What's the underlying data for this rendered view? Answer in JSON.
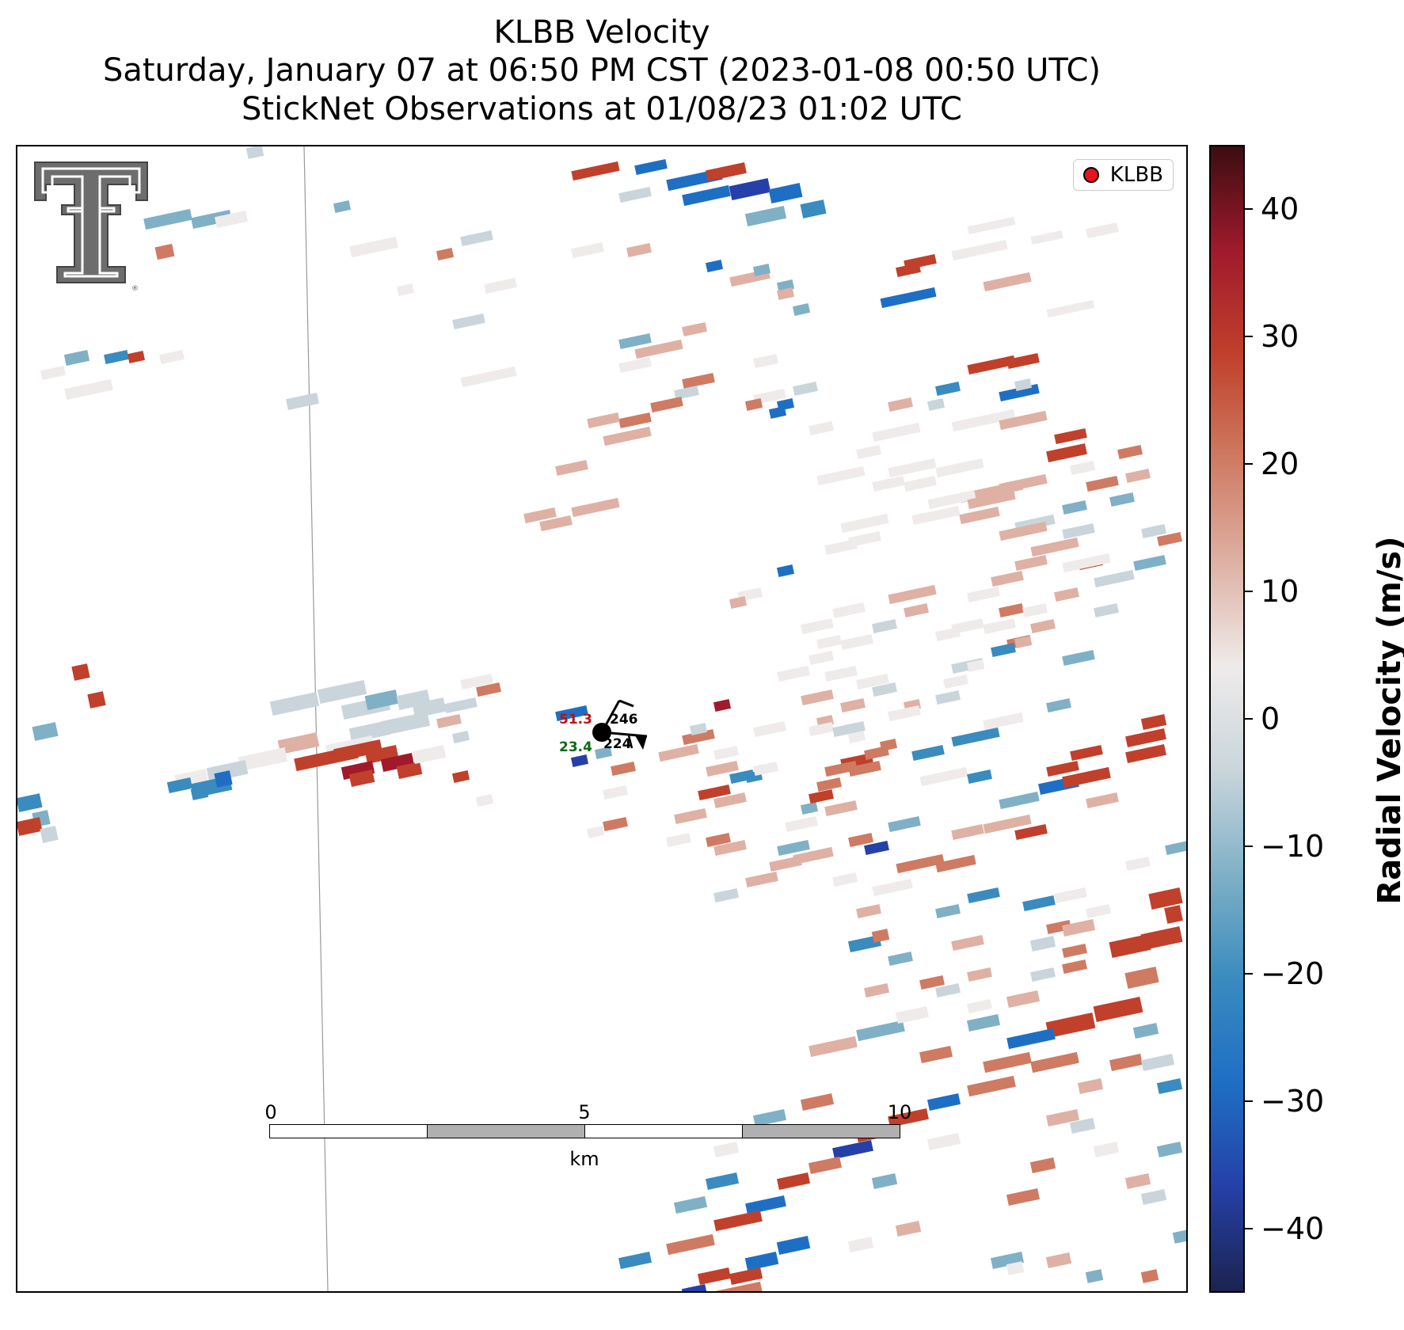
{
  "title": {
    "line1": "KLBB Velocity",
    "line2": "Saturday, January 07 at 06:50 PM CST (2023-01-08 00:50 UTC)",
    "line3": "StickNet Observations at 01/08/23 01:02 UTC"
  },
  "legend": {
    "label": "KLBB",
    "marker_color": "#e8131c"
  },
  "scalebar": {
    "ticks": [
      "0",
      "5",
      "10"
    ],
    "unit": "km"
  },
  "colorbar": {
    "label": "Radial Velocity (m/s)",
    "range": [
      -45,
      45
    ],
    "ticks": [
      {
        "value": 40,
        "label": "40"
      },
      {
        "value": 30,
        "label": "30"
      },
      {
        "value": 20,
        "label": "20"
      },
      {
        "value": 10,
        "label": "10"
      },
      {
        "value": 0,
        "label": "0"
      },
      {
        "value": -10,
        "label": "−10"
      },
      {
        "value": -20,
        "label": "−20"
      },
      {
        "value": -30,
        "label": "−30"
      },
      {
        "value": -40,
        "label": "−40"
      }
    ],
    "colors": [
      "#1c2350",
      "#2540a8",
      "#1e6fc4",
      "#3a8bbf",
      "#7fb0c6",
      "#c9d5db",
      "#efebea",
      "#deb1a4",
      "#cf7a62",
      "#c0402b",
      "#a01a2c",
      "#3c0d12"
    ]
  },
  "station": {
    "value_red": "51.3",
    "value_green": "23.4",
    "value_top": "246",
    "value_bottom": "224"
  },
  "logo": {
    "name": "texas-tech-double-t-logo",
    "registered": "®"
  }
}
